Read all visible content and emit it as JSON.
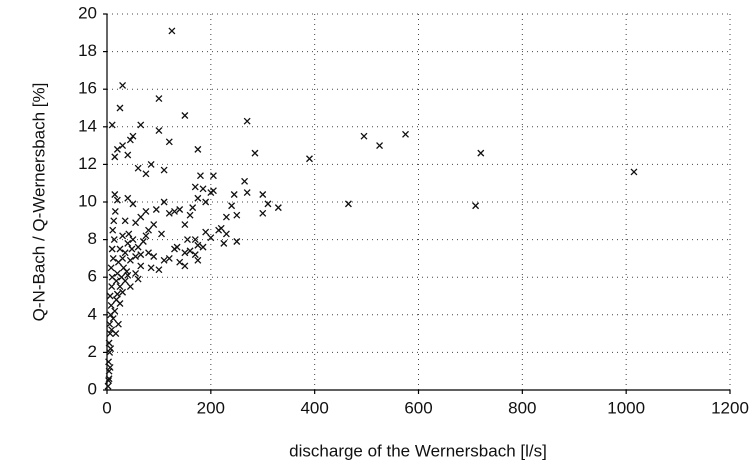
{
  "chart_data": {
    "type": "scatter",
    "x_label": "discharge of the Wernersbach [l/s]",
    "y_label": "Q-N-Bach / Q-Wernersbach [%]",
    "xlim": [
      0,
      1200
    ],
    "xticks": [
      0,
      200,
      400,
      600,
      800,
      1000,
      1200
    ],
    "ylim": [
      0,
      20
    ],
    "yticks": [
      0,
      2,
      4,
      6,
      8,
      10,
      12,
      14,
      16,
      18,
      20
    ],
    "grid": true,
    "color": "#111111",
    "x": [
      125,
      30,
      25,
      100,
      150,
      270,
      65,
      10,
      50,
      120,
      495,
      525,
      575,
      720,
      1015,
      710,
      465,
      390,
      285,
      175,
      180,
      205,
      110,
      85,
      75,
      60,
      40,
      20,
      15,
      30,
      45,
      100,
      300,
      330,
      310,
      300,
      270,
      265,
      245,
      230,
      240,
      220,
      200,
      190,
      175,
      170,
      175,
      140,
      150,
      160,
      150,
      130,
      120,
      135,
      110,
      100,
      85,
      90,
      200,
      190,
      175,
      165,
      160,
      150,
      130,
      120,
      140,
      185,
      170,
      225,
      215,
      230,
      250,
      250,
      155,
      170,
      185,
      205,
      75,
      80,
      65,
      50,
      55,
      40,
      35,
      30,
      25,
      20,
      15,
      2,
      3,
      4,
      3,
      5,
      4,
      6,
      5,
      7,
      8,
      6,
      9,
      10,
      8,
      12,
      10,
      14,
      11,
      13,
      16,
      18,
      20,
      22,
      25,
      28,
      30,
      32,
      35,
      38,
      40,
      42,
      45,
      48,
      50,
      55,
      60,
      65,
      70,
      75,
      80,
      15,
      18,
      20,
      12,
      9,
      7,
      6,
      4,
      25,
      30,
      35,
      40,
      22,
      17,
      45,
      55,
      60,
      65,
      90,
      95,
      105,
      110
    ],
    "values": [
      19.1,
      16.2,
      15.0,
      15.5,
      14.6,
      14.3,
      14.1,
      14.1,
      13.5,
      13.2,
      13.5,
      13.0,
      13.6,
      12.6,
      11.6,
      9.8,
      9.9,
      12.3,
      12.6,
      12.8,
      11.4,
      11.4,
      11.7,
      12.0,
      11.5,
      11.8,
      12.5,
      12.8,
      12.4,
      13.0,
      13.3,
      13.8,
      10.4,
      9.7,
      9.9,
      9.4,
      10.5,
      11.1,
      10.4,
      9.2,
      9.8,
      8.6,
      8.1,
      8.4,
      7.7,
      7.2,
      6.9,
      6.8,
      7.3,
      7.4,
      6.6,
      7.5,
      7.0,
      7.6,
      6.9,
      6.4,
      6.5,
      7.1,
      10.5,
      10.0,
      10.2,
      9.7,
      9.3,
      8.8,
      9.5,
      9.4,
      9.6,
      7.6,
      8.0,
      7.8,
      8.5,
      8.3,
      9.3,
      7.9,
      8.0,
      10.8,
      10.7,
      10.6,
      9.5,
      8.5,
      9.2,
      9.9,
      8.9,
      10.2,
      9.0,
      8.2,
      7.5,
      10.1,
      10.4,
      0.2,
      0.5,
      1.0,
      1.5,
      2.0,
      2.5,
      3.0,
      3.5,
      4.0,
      4.5,
      5.0,
      5.5,
      6.0,
      6.5,
      7.0,
      7.5,
      8.0,
      8.5,
      9.0,
      9.5,
      5.8,
      6.2,
      6.8,
      5.5,
      6.0,
      7.0,
      6.5,
      7.3,
      6.3,
      7.8,
      8.3,
      6.9,
      7.5,
      8.0,
      7.1,
      7.6,
      6.6,
      7.9,
      8.2,
      7.3,
      4.2,
      4.8,
      5.1,
      3.8,
      3.2,
      2.2,
      1.2,
      0.6,
      4.6,
      5.2,
      5.8,
      6.1,
      3.5,
      3.0,
      5.5,
      6.2,
      5.9,
      7.2,
      8.8,
      9.6,
      8.3,
      10.0
    ]
  }
}
